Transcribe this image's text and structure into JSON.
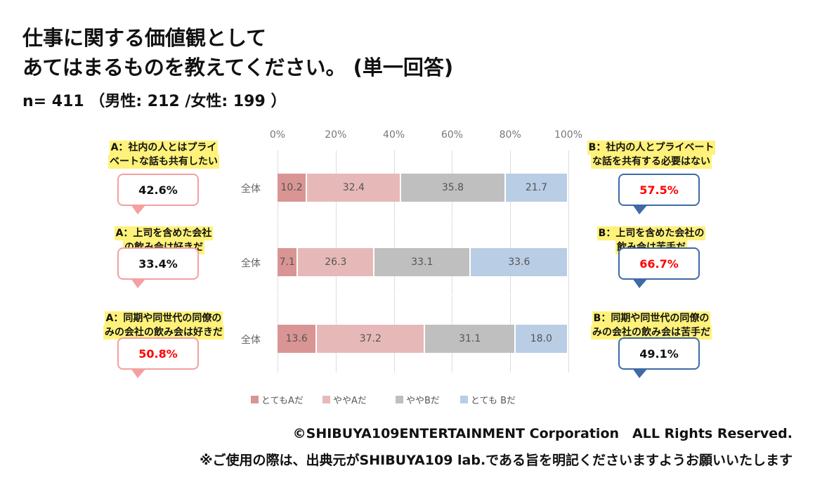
{
  "title": {
    "line1": "仕事に関する価値観として",
    "line2": "あてはまるものを教えてください。 (単一回答)",
    "sample": "n= 411 （男性: 212 /女性: 199 ）"
  },
  "chart_data": {
    "type": "bar",
    "stacked": true,
    "orientation": "horizontal",
    "xlim": [
      0,
      100
    ],
    "ticks": [
      "0%",
      "20%",
      "40%",
      "60%",
      "80%",
      "100%"
    ],
    "categories": [
      "全体",
      "全体",
      "全体"
    ],
    "series": [
      {
        "name": "とてもAだ",
        "color": "#d99594",
        "values": [
          10.2,
          7.1,
          13.6
        ]
      },
      {
        "name": "ややAだ",
        "color": "#e6b9b8",
        "values": [
          32.4,
          26.3,
          37.2
        ]
      },
      {
        "name": "ややBだ",
        "color": "#bfbfbf",
        "values": [
          35.8,
          33.1,
          31.1
        ]
      },
      {
        "name": "とても Bだ",
        "color": "#b9cde5",
        "values": [
          21.7,
          33.6,
          18.0
        ]
      }
    ],
    "legend": "bottom"
  },
  "rows": [
    {
      "a_label": [
        "A：社内の人とはプライ",
        "ベートな話も共有したい"
      ],
      "a_pct": "42.6%",
      "a_color": "#111111",
      "b_label": [
        "B：社内の人とプライベート",
        "な話を共有する必要はない"
      ],
      "b_pct": "57.5%",
      "b_color": "#ff0000"
    },
    {
      "a_label": [
        "A：上司を含めた会社",
        "の飲み会は好きだ"
      ],
      "a_pct": "33.4%",
      "a_color": "#111111",
      "b_label": [
        "B：上司を含めた会社の",
        "飲み会は苦手だ"
      ],
      "b_pct": "66.7%",
      "b_color": "#ff0000"
    },
    {
      "a_label": [
        "A：同期や同世代の同僚の",
        "みの会社の飲み会は好きだ"
      ],
      "a_pct": "50.8%",
      "a_color": "#ff0000",
      "b_label": [
        "B：同期や同世代の同僚の",
        "みの会社の飲み会は苦手だ"
      ],
      "b_pct": "49.1%",
      "b_color": "#111111"
    }
  ],
  "footer": {
    "copyright": "©SHIBUYA109ENTERTAINMENT Corporation　ALL Rights Reserved.",
    "note": "※ご使用の際は、出典元がSHIBUYA109 lab.である旨を明記くださいますようお願いいたします"
  }
}
